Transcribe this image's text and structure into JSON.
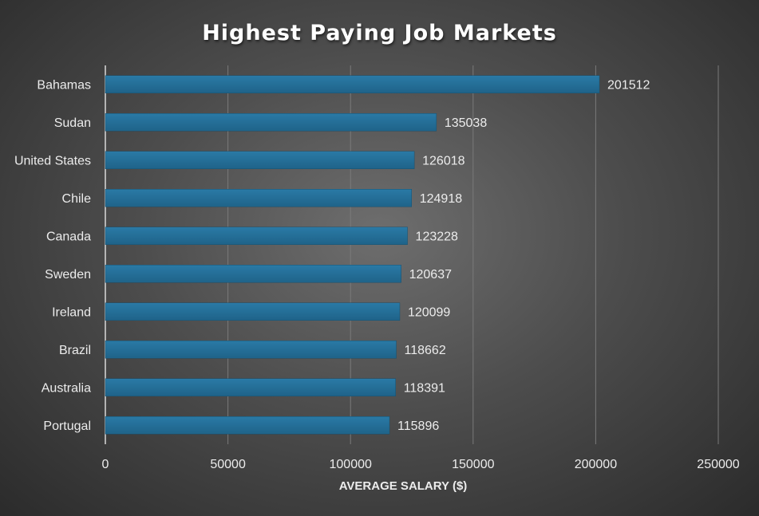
{
  "chart_data": {
    "type": "bar",
    "orientation": "horizontal",
    "title": "Highest Paying Job Markets",
    "xlabel": "AVERAGE SALARY ($)",
    "ylabel": "",
    "categories": [
      "Bahamas",
      "Sudan",
      "United States",
      "Chile",
      "Canada",
      "Sweden",
      "Ireland",
      "Brazil",
      "Australia",
      "Portugal"
    ],
    "values": [
      201512,
      135038,
      126018,
      124918,
      123228,
      120637,
      120099,
      118662,
      118391,
      115896
    ],
    "xlim": [
      0,
      250000
    ],
    "xticks": [
      0,
      50000,
      100000,
      150000,
      200000,
      250000
    ],
    "data_labels": true,
    "grid": "vertical",
    "legend": "none",
    "colors": {
      "bar": "#1f6389",
      "bar_highlight": "#2a7aa6",
      "grid": "#7a7a7a",
      "text": "#ececec",
      "title": "#ffffff"
    }
  }
}
